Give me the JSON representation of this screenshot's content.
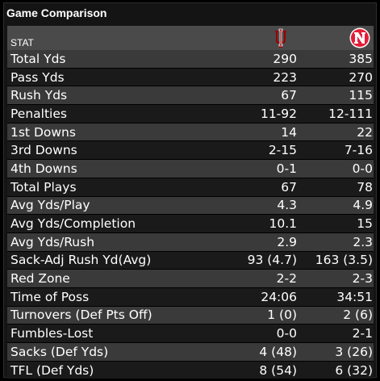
{
  "panel": {
    "title": "Game Comparison"
  },
  "header": {
    "stat_label": "STAT",
    "team1_icon": "indiana-logo-icon",
    "team2_icon": "nebraska-logo-icon",
    "team1_color": "#990000",
    "team2_color": "#e41c38"
  },
  "rows": [
    {
      "label": "Total Yds",
      "team1": "290",
      "team2": "385"
    },
    {
      "label": "Pass Yds",
      "team1": "223",
      "team2": "270"
    },
    {
      "label": "Rush Yds",
      "team1": "67",
      "team2": "115"
    },
    {
      "label": "Penalties",
      "team1": "11-92",
      "team2": "12-111"
    },
    {
      "label": "1st Downs",
      "team1": "14",
      "team2": "22"
    },
    {
      "label": "3rd Downs",
      "team1": "2-15",
      "team2": "7-16"
    },
    {
      "label": "4th Downs",
      "team1": "0-1",
      "team2": "0-0"
    },
    {
      "label": "Total Plays",
      "team1": "67",
      "team2": "78"
    },
    {
      "label": "Avg Yds/Play",
      "team1": "4.3",
      "team2": "4.9"
    },
    {
      "label": "Avg Yds/Completion",
      "team1": "10.1",
      "team2": "15"
    },
    {
      "label": "Avg Yds/Rush",
      "team1": "2.9",
      "team2": "2.3"
    },
    {
      "label": "Sack-Adj Rush Yd(Avg)",
      "team1": "93 (4.7)",
      "team2": "163 (3.5)"
    },
    {
      "label": "Red Zone",
      "team1": "2-2",
      "team2": "2-3"
    },
    {
      "label": "Time of Poss",
      "team1": "24:06",
      "team2": "34:51"
    },
    {
      "label": "Turnovers (Def Pts Off)",
      "team1": "1 (0)",
      "team2": "2 (6)"
    },
    {
      "label": "Fumbles-Lost",
      "team1": "0-0",
      "team2": "2-1"
    },
    {
      "label": "Sacks (Def Yds)",
      "team1": "4 (48)",
      "team2": "3 (26)"
    },
    {
      "label": "TFL (Def Yds)",
      "team1": "8 (54)",
      "team2": "6 (32)"
    }
  ]
}
